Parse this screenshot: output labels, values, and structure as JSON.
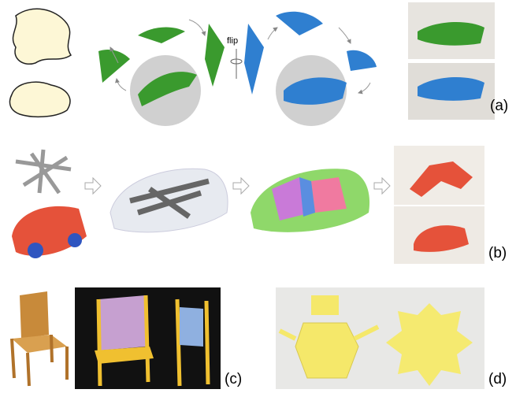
{
  "panels": [
    {
      "label": "(a)",
      "note": "flip"
    },
    {
      "label": "(b)"
    },
    {
      "label": "(c)"
    },
    {
      "label": "(d)"
    }
  ]
}
